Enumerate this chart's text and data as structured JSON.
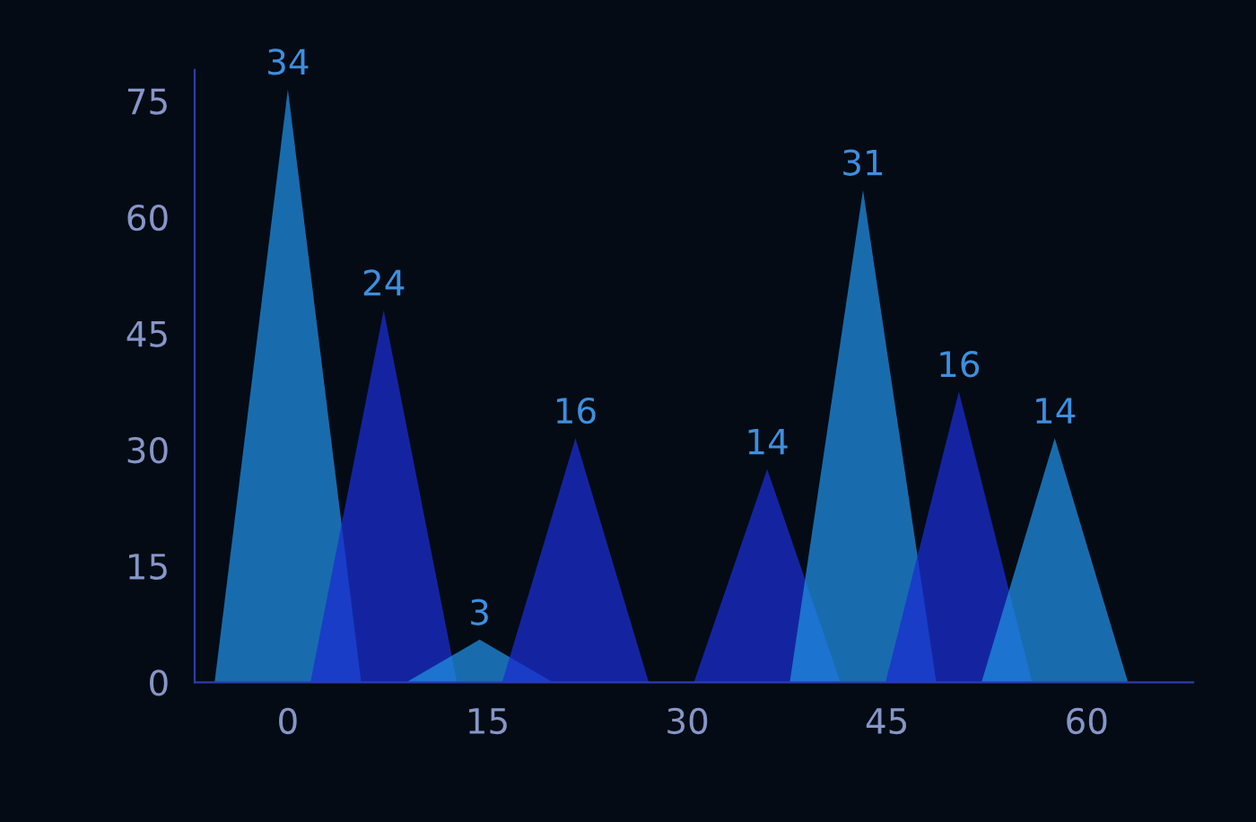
{
  "chart_data": {
    "type": "area",
    "series": [
      {
        "color": "#1f8ee0",
        "x": [
          -5.5,
          0,
          5.5
        ],
        "values": [
          0,
          76.5,
          0
        ]
      },
      {
        "color": "#1a2ed0",
        "x": [
          1.7,
          7.2,
          12.7
        ],
        "values": [
          0,
          48,
          0
        ]
      },
      {
        "color": "#1f8ee0",
        "x": [
          8.9,
          14.4,
          19.9
        ],
        "values": [
          0,
          5.5,
          0
        ]
      },
      {
        "color": "#1a2ed0",
        "x": [
          16.1,
          21.6,
          27.1
        ],
        "values": [
          0,
          31.5,
          0
        ]
      },
      {
        "color": "#1a2ed0",
        "x": [
          30.5,
          36,
          41.5
        ],
        "values": [
          0,
          27.5,
          0
        ]
      },
      {
        "color": "#1f8ee0",
        "x": [
          37.7,
          43.2,
          48.7
        ],
        "values": [
          0,
          63.5,
          0
        ]
      },
      {
        "color": "#1a2ed0",
        "x": [
          44.9,
          50.4,
          55.9
        ],
        "values": [
          0,
          37.5,
          0
        ]
      },
      {
        "color": "#1f8ee0",
        "x": [
          52.1,
          57.6,
          63.1
        ],
        "values": [
          0,
          31.5,
          0
        ]
      }
    ],
    "annotations": [
      {
        "text": "34",
        "x": 0,
        "y": 76.5
      },
      {
        "text": "24",
        "x": 7.2,
        "y": 48
      },
      {
        "text": "3",
        "x": 14.4,
        "y": 5.5
      },
      {
        "text": "16",
        "x": 21.6,
        "y": 31.5
      },
      {
        "text": "14",
        "x": 36,
        "y": 27.5
      },
      {
        "text": "31",
        "x": 43.2,
        "y": 63.5
      },
      {
        "text": "16",
        "x": 50.4,
        "y": 37.5
      },
      {
        "text": "14",
        "x": 57.6,
        "y": 31.5
      }
    ],
    "xlim": [
      -7,
      68
    ],
    "xticks": [
      0,
      15,
      30,
      45,
      60
    ],
    "ylim": [
      0,
      79
    ],
    "yticks": [
      0,
      15,
      30,
      45,
      60,
      75
    ],
    "grid": false,
    "legend": false
  }
}
